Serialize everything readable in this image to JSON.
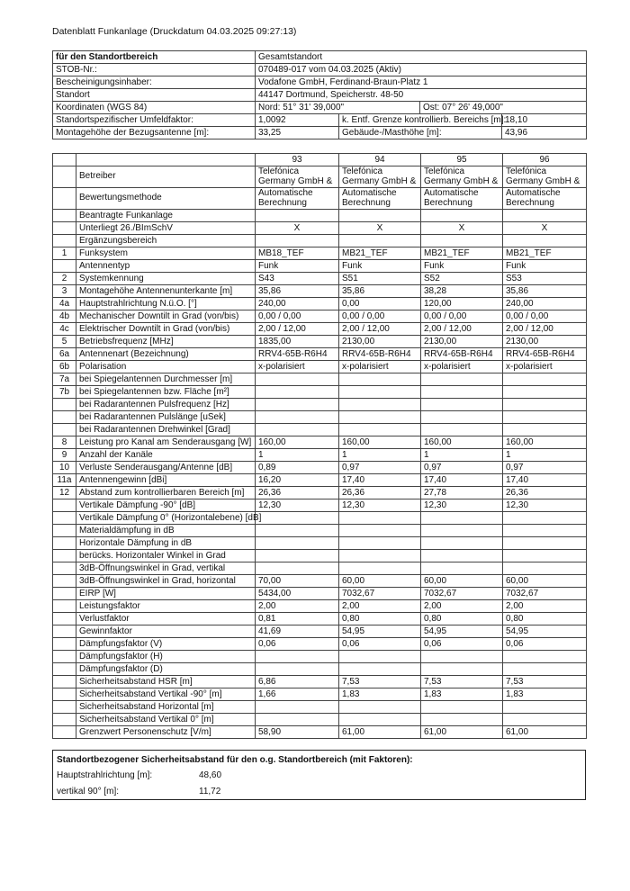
{
  "title": "Datenblatt Funkanlage (Druckdatum 04.03.2025 09:27:13)",
  "site": {
    "header_label": "für den Standortbereich",
    "header_value": "Gesamtstandort",
    "stob_label": "STOB-Nr.:",
    "stob_value": "070489-017 vom 04.03.2025 (Aktiv)",
    "holder_label": "Bescheinigungsinhaber:",
    "holder_value": "Vodafone GmbH, Ferdinand-Braun-Platz 1",
    "location_label": "Standort",
    "location_value": "44147 Dortmund, Speicherstr. 48-50",
    "coords_label": "Koordinaten (WGS 84)",
    "coords_north": "Nord: 51° 31' 39,000\"",
    "coords_east": "Ost: 07° 26' 49,000\"",
    "env_factor_label": "Standortspezifischer Umfeldfaktor:",
    "env_factor_value": "1,0092",
    "ctrl_dist_label": "k. Entf. Grenze kontrollierb. Bereichs [m]:",
    "ctrl_dist_value": "18,10",
    "mount_height_label": "Montagehöhe der Bezugsantenne [m]:",
    "mount_height_value": "33,25",
    "building_height_label": "Gebäude-/Masthöhe [m]:",
    "building_height_value": "43,96"
  },
  "antennas": {
    "columns": [
      "93",
      "94",
      "95",
      "96"
    ],
    "rows": [
      [
        "",
        "Betreiber",
        "Telefónica\nGermany GmbH &",
        "Telefónica\nGermany GmbH &",
        "Telefónica\nGermany GmbH &",
        "Telefónica\nGermany GmbH &"
      ],
      [
        "",
        "Bewertungsmethode",
        "Automatische\nBerechnung",
        "Automatische\nBerechnung",
        "Automatische\nBerechnung",
        "Automatische\nBerechnung"
      ],
      [
        "",
        "Beantragte Funkanlage",
        "",
        "",
        "",
        ""
      ],
      [
        "",
        "Unterliegt 26./BImSchV",
        "X",
        "X",
        "X",
        "X"
      ],
      [
        "",
        "Ergänzungsbereich",
        "",
        "",
        "",
        ""
      ],
      [
        "1",
        "Funksystem",
        "MB18_TEF",
        "MB21_TEF",
        "MB21_TEF",
        "MB21_TEF"
      ],
      [
        "",
        "Antennentyp",
        "Funk",
        "Funk",
        "Funk",
        "Funk"
      ],
      [
        "2",
        "Systemkennung",
        "S43",
        "S51",
        "S52",
        "S53"
      ],
      [
        "3",
        "Montagehöhe Antennenunterkante [m]",
        "35,86",
        "35,86",
        "38,28",
        "35,86"
      ],
      [
        "4a",
        "Hauptstrahlrichtung N.ü.O. [°]",
        "240,00",
        "0,00",
        "120,00",
        "240,00"
      ],
      [
        "4b",
        "Mechanischer Downtilt in Grad (von/bis)",
        "0,00 / 0,00",
        "0,00 / 0,00",
        "0,00 / 0,00",
        "0,00 / 0,00"
      ],
      [
        "4c",
        "Elektrischer Downtilt in Grad (von/bis)",
        "2,00 / 12,00",
        "2,00 / 12,00",
        "2,00 / 12,00",
        "2,00 / 12,00"
      ],
      [
        "5",
        "Betriebsfrequenz [MHz]",
        "1835,00",
        "2130,00",
        "2130,00",
        "2130,00"
      ],
      [
        "6a",
        "Antennenart (Bezeichnung)",
        "RRV4-65B-R6H4",
        "RRV4-65B-R6H4",
        "RRV4-65B-R6H4",
        "RRV4-65B-R6H4"
      ],
      [
        "6b",
        "Polarisation",
        "x-polarisiert",
        "x-polarisiert",
        "x-polarisiert",
        "x-polarisiert"
      ],
      [
        "7a",
        "bei Spiegelantennen Durchmesser [m]",
        "",
        "",
        "",
        ""
      ],
      [
        "7b",
        "bei Spiegelantennen bzw. Fläche [m²]",
        "",
        "",
        "",
        ""
      ],
      [
        "",
        "bei Radarantennen Pulsfrequenz [Hz]",
        "",
        "",
        "",
        ""
      ],
      [
        "",
        "bei Radarantennen Pulslänge [uSek]",
        "",
        "",
        "",
        ""
      ],
      [
        "",
        "bei Radarantennen Drehwinkel [Grad]",
        "",
        "",
        "",
        ""
      ],
      [
        "8",
        "Leistung pro Kanal am Senderausgang  [W]",
        "160,00",
        "160,00",
        "160,00",
        "160,00"
      ],
      [
        "9",
        "Anzahl der Kanäle",
        "1",
        "1",
        "1",
        "1"
      ],
      [
        "10",
        "Verluste Senderausgang/Antenne [dB]",
        "0,89",
        "0,97",
        "0,97",
        "0,97"
      ],
      [
        "11a",
        "Antennengewinn [dBi]",
        "16,20",
        "17,40",
        "17,40",
        "17,40"
      ],
      [
        "12",
        "Abstand zum kontrollierbaren Bereich [m]",
        "26,36",
        "26,36",
        "27,78",
        "26,36"
      ],
      [
        "",
        "Vertikale Dämpfung -90° [dB]",
        "12,30",
        "12,30",
        "12,30",
        "12,30"
      ],
      [
        "",
        "Vertikale Dämpfung 0° (Horizontalebene) [dB]",
        "",
        "",
        "",
        ""
      ],
      [
        "",
        "Materialdämpfung in dB",
        "",
        "",
        "",
        ""
      ],
      [
        "",
        "Horizontale Dämpfung in dB",
        "",
        "",
        "",
        ""
      ],
      [
        "",
        "berücks. Horizontaler Winkel in Grad",
        "",
        "",
        "",
        ""
      ],
      [
        "",
        "3dB-Öffnungswinkel in Grad, vertikal",
        "",
        "",
        "",
        ""
      ],
      [
        "",
        "3dB-Öffnungswinkel in Grad, horizontal",
        "70,00",
        "60,00",
        "60,00",
        "60,00"
      ],
      [
        "",
        "EIRP [W]",
        "5434,00",
        "7032,67",
        "7032,67",
        "7032,67"
      ],
      [
        "",
        "Leistungsfaktor",
        "2,00",
        "2,00",
        "2,00",
        "2,00"
      ],
      [
        "",
        "Verlustfaktor",
        "0,81",
        "0,80",
        "0,80",
        "0,80"
      ],
      [
        "",
        "Gewinnfaktor",
        "41,69",
        "54,95",
        "54,95",
        "54,95"
      ],
      [
        "",
        "Dämpfungsfaktor (V)",
        "0,06",
        "0,06",
        "0,06",
        "0,06"
      ],
      [
        "",
        "Dämpfungsfaktor (H)",
        "",
        "",
        "",
        ""
      ],
      [
        "",
        "Dämpfungsfaktor (D)",
        "",
        "",
        "",
        ""
      ],
      [
        "",
        "Sicherheitsabstand HSR [m]",
        "6,86",
        "7,53",
        "7,53",
        "7,53"
      ],
      [
        "",
        "Sicherheitsabstand Vertikal -90° [m]",
        "1,66",
        "1,83",
        "1,83",
        "1,83"
      ],
      [
        "",
        "Sicherheitsabstand Horizontal [m]",
        "",
        "",
        "",
        ""
      ],
      [
        "",
        "Sicherheitsabstand Vertikal 0° [m]",
        "",
        "",
        "",
        ""
      ],
      [
        "",
        "Grenzwert Personenschutz [V/m]",
        "58,90",
        "61,00",
        "61,00",
        "61,00"
      ]
    ]
  },
  "summary": {
    "heading": "Standortbezogener Sicherheitsabstand für den o.g. Standortbereich (mit Faktoren):",
    "main_dir_label": "Hauptstrahlrichtung [m]:",
    "main_dir_value": "48,60",
    "vertical_label": "vertikal 90° [m]:",
    "vertical_value": "11,72"
  }
}
